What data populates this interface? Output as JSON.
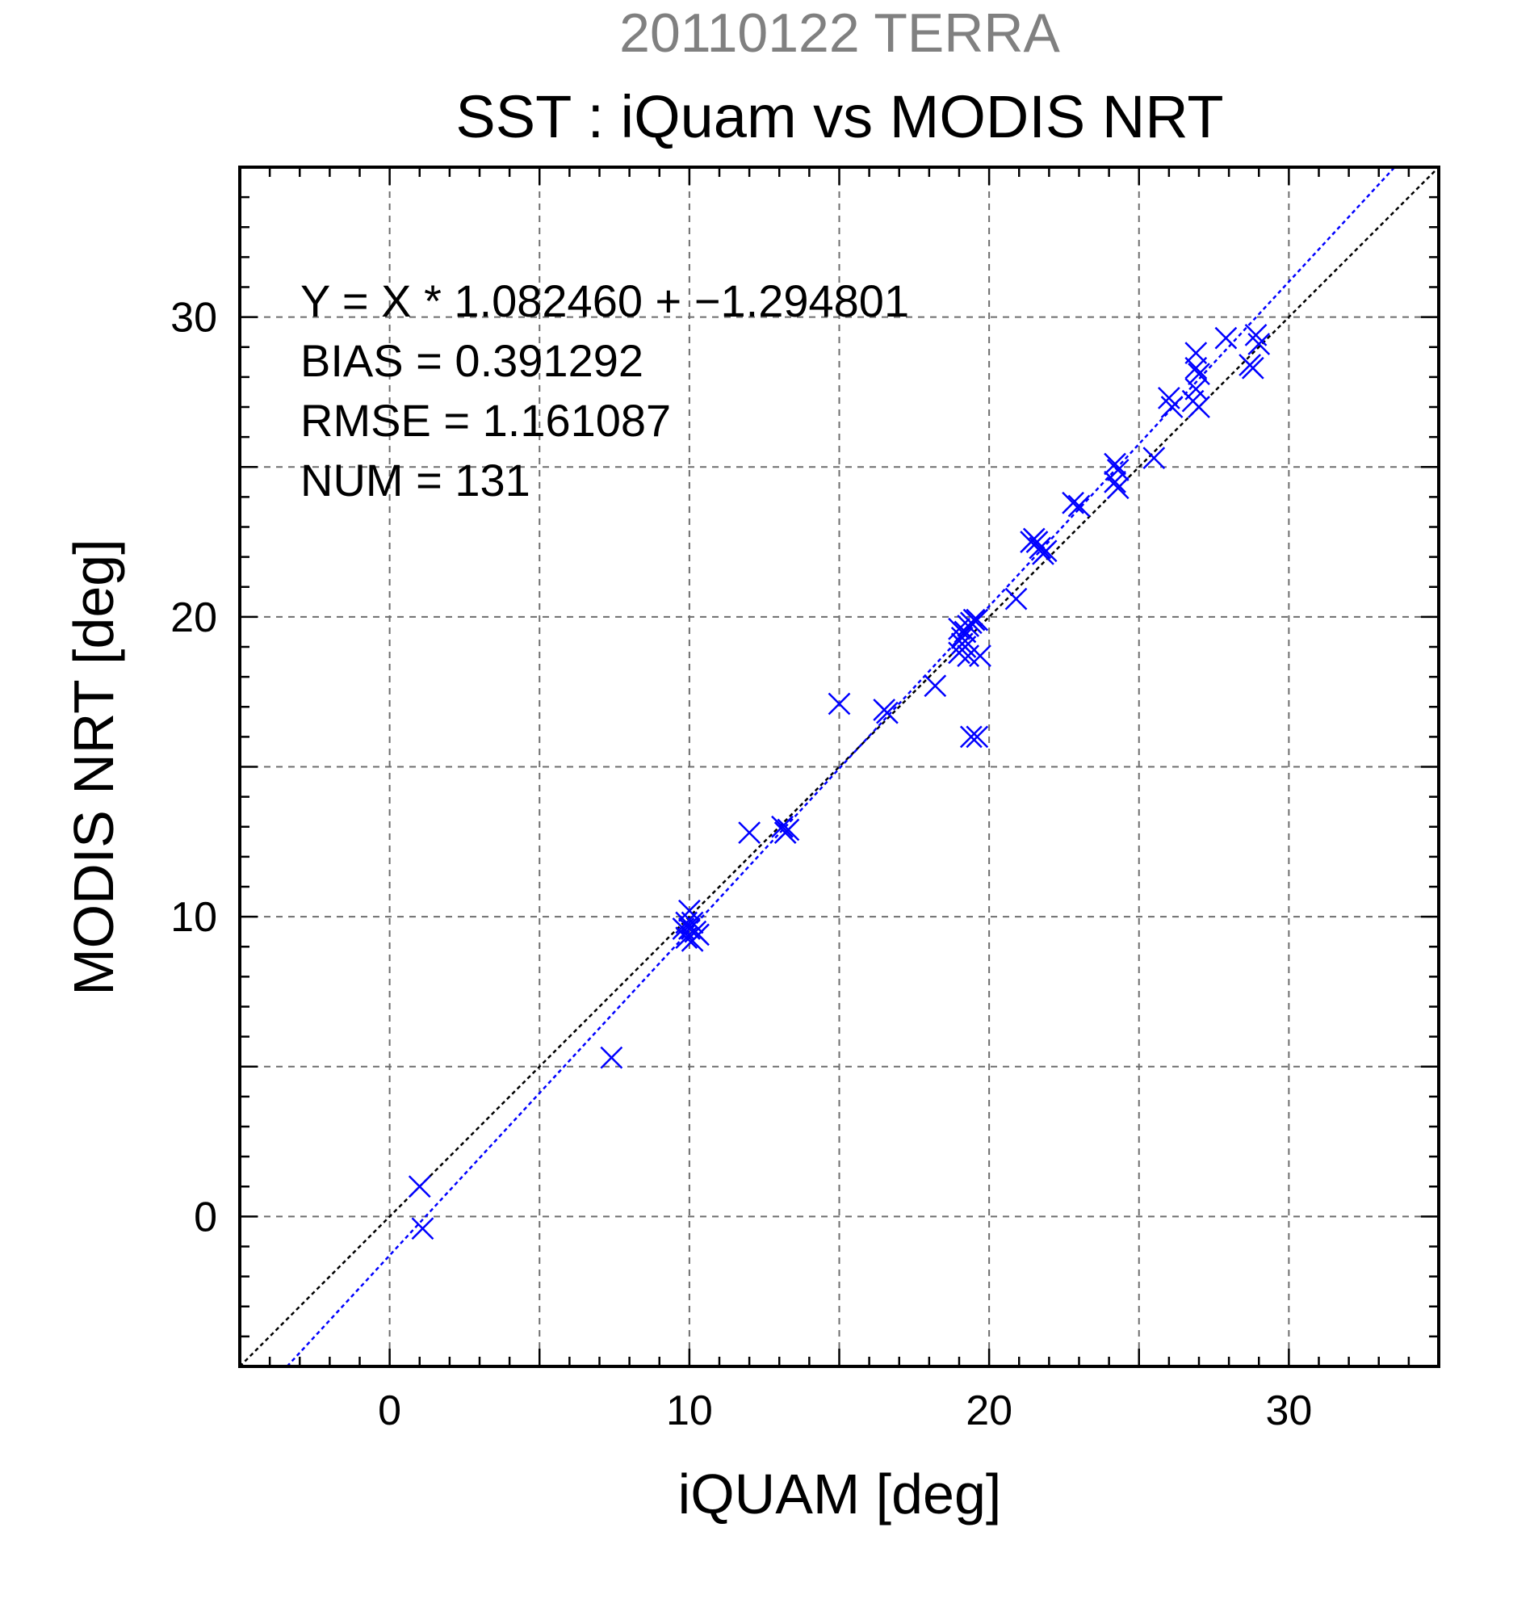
{
  "chart_data": {
    "type": "scatter",
    "suptitle": "20110122 TERRA",
    "title": "SST : iQuam vs MODIS NRT",
    "xlabel": "iQUAM [deg]",
    "ylabel": "MODIS NRT [deg]",
    "xlim": [
      -5,
      35
    ],
    "ylim": [
      -5,
      35
    ],
    "xticks": [
      0,
      10,
      20,
      30
    ],
    "yticks": [
      0,
      10,
      20,
      30
    ],
    "grid_step": 5,
    "minor_tick_step": 1,
    "grid": true,
    "marker": "x",
    "colors": {
      "points": "#0000ff",
      "fit_line": "#0000ff",
      "identity_line": "#000000",
      "suptitle": "#808080",
      "grid": "#6e6e6e"
    },
    "fit": {
      "slope": 1.08246,
      "intercept": -1.294801
    },
    "stats": [
      "Y = X * 1.082460 + −1.294801",
      "BIAS = 0.391292",
      "RMSE = 1.161087",
      "NUM = 131"
    ],
    "points": [
      [
        1.0,
        1.0
      ],
      [
        1.1,
        -0.4
      ],
      [
        7.4,
        5.3
      ],
      [
        9.8,
        9.6
      ],
      [
        9.9,
        9.3
      ],
      [
        10.0,
        10.2
      ],
      [
        10.1,
        9.8
      ],
      [
        10.2,
        9.5
      ],
      [
        10.3,
        9.4
      ],
      [
        10.1,
        9.2
      ],
      [
        9.9,
        9.8
      ],
      [
        10.0,
        9.6
      ],
      [
        12.0,
        12.8
      ],
      [
        13.1,
        13.0
      ],
      [
        13.3,
        12.9
      ],
      [
        13.2,
        12.8
      ],
      [
        15.0,
        17.1
      ],
      [
        16.5,
        16.9
      ],
      [
        16.6,
        16.8
      ],
      [
        18.2,
        17.7
      ],
      [
        19.0,
        19.6
      ],
      [
        19.1,
        19.3
      ],
      [
        19.2,
        19.0
      ],
      [
        19.0,
        18.8
      ],
      [
        19.3,
        19.7
      ],
      [
        19.2,
        19.5
      ],
      [
        19.4,
        19.8
      ],
      [
        19.6,
        19.9
      ],
      [
        19.3,
        18.7
      ],
      [
        19.1,
        19.1
      ],
      [
        19.7,
        18.7
      ],
      [
        19.5,
        19.9
      ],
      [
        19.4,
        16.0
      ],
      [
        19.6,
        16.0
      ],
      [
        20.9,
        20.6
      ],
      [
        21.4,
        22.5
      ],
      [
        21.5,
        22.6
      ],
      [
        21.6,
        22.5
      ],
      [
        21.7,
        22.3
      ],
      [
        21.9,
        22.2
      ],
      [
        21.8,
        22.1
      ],
      [
        22.8,
        23.8
      ],
      [
        23.0,
        23.7
      ],
      [
        24.2,
        25.1
      ],
      [
        24.3,
        24.9
      ],
      [
        24.2,
        24.5
      ],
      [
        24.3,
        24.3
      ],
      [
        25.5,
        25.3
      ],
      [
        26.0,
        27.3
      ],
      [
        26.1,
        27.0
      ],
      [
        26.8,
        27.2
      ],
      [
        26.9,
        27.6
      ],
      [
        26.9,
        28.3
      ],
      [
        26.9,
        28.8
      ],
      [
        27.0,
        28.1
      ],
      [
        27.0,
        27.0
      ],
      [
        27.9,
        29.3
      ],
      [
        28.7,
        28.4
      ],
      [
        28.8,
        28.3
      ],
      [
        28.9,
        29.4
      ],
      [
        29.0,
        29.1
      ]
    ]
  }
}
